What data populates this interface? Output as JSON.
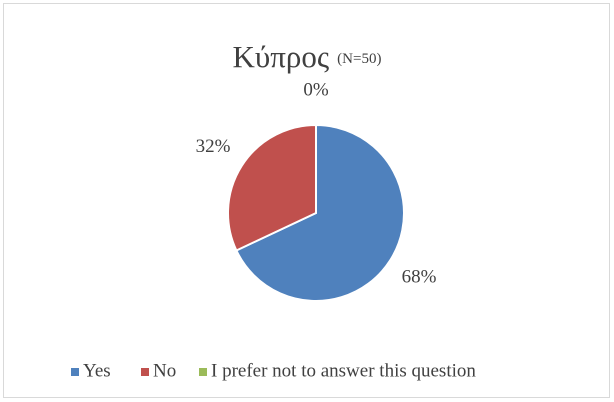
{
  "chart_data": {
    "type": "pie",
    "title": "Κύπρος",
    "subtitle": "(N=50)",
    "categories": [
      "Yes",
      "No",
      "I prefer not to answer this question"
    ],
    "values": [
      68,
      32,
      0
    ],
    "value_labels": [
      "68%",
      "32%",
      "0%"
    ],
    "colors": [
      "#4f81bd",
      "#c0504d",
      "#9bbb59"
    ],
    "legend": "bottom"
  }
}
